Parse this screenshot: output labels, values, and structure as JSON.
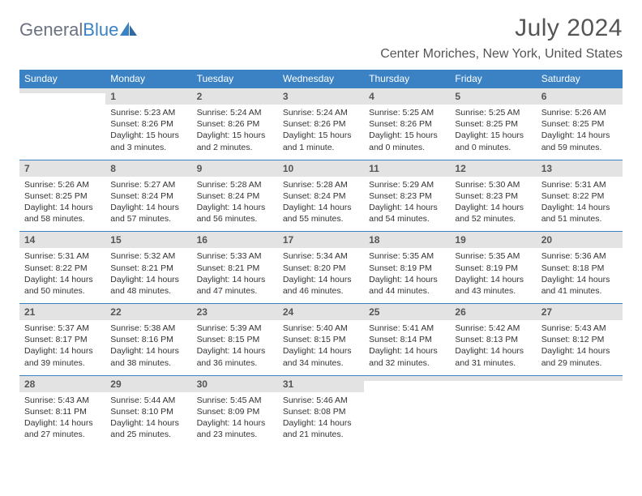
{
  "logo": {
    "text_gray": "General",
    "text_blue": "Blue"
  },
  "header": {
    "month_title": "July 2024",
    "location": "Center Moriches, New York, United States"
  },
  "colors": {
    "header_bg": "#3b82c4",
    "header_text": "#ffffff",
    "daynum_bg": "#e3e3e3",
    "border": "#3b82c4",
    "body_text": "#333333",
    "title_text": "#555555"
  },
  "day_headers": [
    "Sunday",
    "Monday",
    "Tuesday",
    "Wednesday",
    "Thursday",
    "Friday",
    "Saturday"
  ],
  "weeks": [
    [
      {
        "n": "",
        "sunrise": "",
        "sunset": "",
        "daylight": ""
      },
      {
        "n": "1",
        "sunrise": "Sunrise: 5:23 AM",
        "sunset": "Sunset: 8:26 PM",
        "daylight": "Daylight: 15 hours and 3 minutes."
      },
      {
        "n": "2",
        "sunrise": "Sunrise: 5:24 AM",
        "sunset": "Sunset: 8:26 PM",
        "daylight": "Daylight: 15 hours and 2 minutes."
      },
      {
        "n": "3",
        "sunrise": "Sunrise: 5:24 AM",
        "sunset": "Sunset: 8:26 PM",
        "daylight": "Daylight: 15 hours and 1 minute."
      },
      {
        "n": "4",
        "sunrise": "Sunrise: 5:25 AM",
        "sunset": "Sunset: 8:26 PM",
        "daylight": "Daylight: 15 hours and 0 minutes."
      },
      {
        "n": "5",
        "sunrise": "Sunrise: 5:25 AM",
        "sunset": "Sunset: 8:25 PM",
        "daylight": "Daylight: 15 hours and 0 minutes."
      },
      {
        "n": "6",
        "sunrise": "Sunrise: 5:26 AM",
        "sunset": "Sunset: 8:25 PM",
        "daylight": "Daylight: 14 hours and 59 minutes."
      }
    ],
    [
      {
        "n": "7",
        "sunrise": "Sunrise: 5:26 AM",
        "sunset": "Sunset: 8:25 PM",
        "daylight": "Daylight: 14 hours and 58 minutes."
      },
      {
        "n": "8",
        "sunrise": "Sunrise: 5:27 AM",
        "sunset": "Sunset: 8:24 PM",
        "daylight": "Daylight: 14 hours and 57 minutes."
      },
      {
        "n": "9",
        "sunrise": "Sunrise: 5:28 AM",
        "sunset": "Sunset: 8:24 PM",
        "daylight": "Daylight: 14 hours and 56 minutes."
      },
      {
        "n": "10",
        "sunrise": "Sunrise: 5:28 AM",
        "sunset": "Sunset: 8:24 PM",
        "daylight": "Daylight: 14 hours and 55 minutes."
      },
      {
        "n": "11",
        "sunrise": "Sunrise: 5:29 AM",
        "sunset": "Sunset: 8:23 PM",
        "daylight": "Daylight: 14 hours and 54 minutes."
      },
      {
        "n": "12",
        "sunrise": "Sunrise: 5:30 AM",
        "sunset": "Sunset: 8:23 PM",
        "daylight": "Daylight: 14 hours and 52 minutes."
      },
      {
        "n": "13",
        "sunrise": "Sunrise: 5:31 AM",
        "sunset": "Sunset: 8:22 PM",
        "daylight": "Daylight: 14 hours and 51 minutes."
      }
    ],
    [
      {
        "n": "14",
        "sunrise": "Sunrise: 5:31 AM",
        "sunset": "Sunset: 8:22 PM",
        "daylight": "Daylight: 14 hours and 50 minutes."
      },
      {
        "n": "15",
        "sunrise": "Sunrise: 5:32 AM",
        "sunset": "Sunset: 8:21 PM",
        "daylight": "Daylight: 14 hours and 48 minutes."
      },
      {
        "n": "16",
        "sunrise": "Sunrise: 5:33 AM",
        "sunset": "Sunset: 8:21 PM",
        "daylight": "Daylight: 14 hours and 47 minutes."
      },
      {
        "n": "17",
        "sunrise": "Sunrise: 5:34 AM",
        "sunset": "Sunset: 8:20 PM",
        "daylight": "Daylight: 14 hours and 46 minutes."
      },
      {
        "n": "18",
        "sunrise": "Sunrise: 5:35 AM",
        "sunset": "Sunset: 8:19 PM",
        "daylight": "Daylight: 14 hours and 44 minutes."
      },
      {
        "n": "19",
        "sunrise": "Sunrise: 5:35 AM",
        "sunset": "Sunset: 8:19 PM",
        "daylight": "Daylight: 14 hours and 43 minutes."
      },
      {
        "n": "20",
        "sunrise": "Sunrise: 5:36 AM",
        "sunset": "Sunset: 8:18 PM",
        "daylight": "Daylight: 14 hours and 41 minutes."
      }
    ],
    [
      {
        "n": "21",
        "sunrise": "Sunrise: 5:37 AM",
        "sunset": "Sunset: 8:17 PM",
        "daylight": "Daylight: 14 hours and 39 minutes."
      },
      {
        "n": "22",
        "sunrise": "Sunrise: 5:38 AM",
        "sunset": "Sunset: 8:16 PM",
        "daylight": "Daylight: 14 hours and 38 minutes."
      },
      {
        "n": "23",
        "sunrise": "Sunrise: 5:39 AM",
        "sunset": "Sunset: 8:15 PM",
        "daylight": "Daylight: 14 hours and 36 minutes."
      },
      {
        "n": "24",
        "sunrise": "Sunrise: 5:40 AM",
        "sunset": "Sunset: 8:15 PM",
        "daylight": "Daylight: 14 hours and 34 minutes."
      },
      {
        "n": "25",
        "sunrise": "Sunrise: 5:41 AM",
        "sunset": "Sunset: 8:14 PM",
        "daylight": "Daylight: 14 hours and 32 minutes."
      },
      {
        "n": "26",
        "sunrise": "Sunrise: 5:42 AM",
        "sunset": "Sunset: 8:13 PM",
        "daylight": "Daylight: 14 hours and 31 minutes."
      },
      {
        "n": "27",
        "sunrise": "Sunrise: 5:43 AM",
        "sunset": "Sunset: 8:12 PM",
        "daylight": "Daylight: 14 hours and 29 minutes."
      }
    ],
    [
      {
        "n": "28",
        "sunrise": "Sunrise: 5:43 AM",
        "sunset": "Sunset: 8:11 PM",
        "daylight": "Daylight: 14 hours and 27 minutes."
      },
      {
        "n": "29",
        "sunrise": "Sunrise: 5:44 AM",
        "sunset": "Sunset: 8:10 PM",
        "daylight": "Daylight: 14 hours and 25 minutes."
      },
      {
        "n": "30",
        "sunrise": "Sunrise: 5:45 AM",
        "sunset": "Sunset: 8:09 PM",
        "daylight": "Daylight: 14 hours and 23 minutes."
      },
      {
        "n": "31",
        "sunrise": "Sunrise: 5:46 AM",
        "sunset": "Sunset: 8:08 PM",
        "daylight": "Daylight: 14 hours and 21 minutes."
      },
      {
        "n": "",
        "sunrise": "",
        "sunset": "",
        "daylight": ""
      },
      {
        "n": "",
        "sunrise": "",
        "sunset": "",
        "daylight": ""
      },
      {
        "n": "",
        "sunrise": "",
        "sunset": "",
        "daylight": ""
      }
    ]
  ]
}
